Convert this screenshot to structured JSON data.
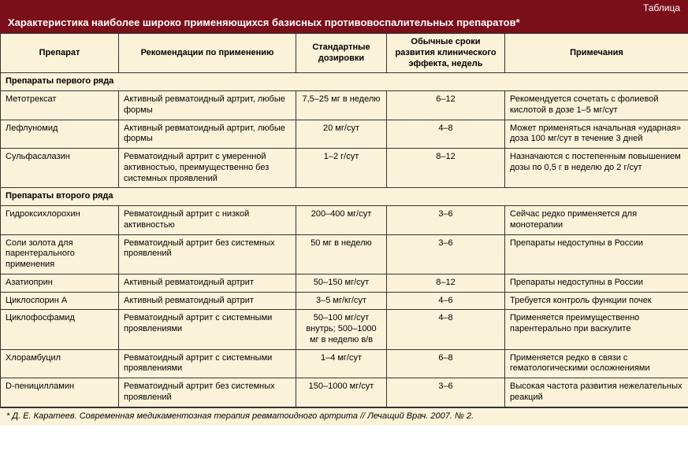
{
  "label": "Таблица",
  "title": "Характеристика наиболее широко применяющихся базисных противовоспалительных препаратов*",
  "columns": [
    "Препарат",
    "Рекомендации по применению",
    "Стандартные дозировки",
    "Обычные сроки развития клинического эффекта, недель",
    "Примечания"
  ],
  "colors": {
    "header_bg": "#7a0f1a",
    "header_text": "#ffffff",
    "body_bg": "#fbf3d9",
    "border": "#333333"
  },
  "sections": [
    {
      "heading": "Препараты первого ряда",
      "rows": [
        {
          "drug": "Метотрексат",
          "rec": "Активный ревматоидный артрит, любые формы",
          "dose": "7,5–25 мг в неделю",
          "weeks": "6–12",
          "note": "Рекомендуется сочетать с фолиевой кислотой в дозе 1–5 мг/сут"
        },
        {
          "drug": "Лефлуномид",
          "rec": "Активный ревматоидный артрит, любые формы",
          "dose": "20 мг/сут",
          "weeks": "4–8",
          "note": "Может применяться начальная «ударная» доза 100 мг/сут в течение 3 дней"
        },
        {
          "drug": "Сульфасалазин",
          "rec": "Ревматоидный артрит с умеренной активностью, преимущественно без системных проявлений",
          "dose": "1–2 г/сут",
          "weeks": "8–12",
          "note": "Назначаются с постепенным повышением дозы по 0,5 г в неделю до 2 г/сут"
        }
      ]
    },
    {
      "heading": "Препараты второго ряда",
      "rows": [
        {
          "drug": "Гидроксихлорохин",
          "rec": "Ревматоидный артрит с низкой активностью",
          "dose": "200–400 мг/сут",
          "weeks": "3–6",
          "note": "Сейчас редко применяется для монотерапии"
        },
        {
          "drug": "Соли золота для парентерального применения",
          "rec": "Ревматоидный артрит без системных проявлений",
          "dose": "50 мг в неделю",
          "weeks": "3–6",
          "note": "Препараты недоступны в России"
        },
        {
          "drug": "Азатиоприн",
          "rec": "Активный ревматоидный артрит",
          "dose": "50–150 мг/сут",
          "weeks": "8–12",
          "note": "Препараты недоступны в России"
        },
        {
          "drug": "Циклоспорин А",
          "rec": "Активный ревматоидный артрит",
          "dose": "3–5 мг/кг/сут",
          "weeks": "4–6",
          "note": "Требуется контроль функции почек"
        },
        {
          "drug": "Циклофосфамид",
          "rec": "Ревматоидный артрит с системными проявлениями",
          "dose": "50–100 мг/сут внутрь; 500–1000 мг в неделю в/в",
          "weeks": "4–8",
          "note": "Применяется преимущественно парентерально при васкулите"
        },
        {
          "drug": "Хлорамбуцил",
          "rec": "Ревматоидный артрит с системными проявлениями",
          "dose": "1–4 мг/сут",
          "weeks": "6–8",
          "note": "Применяется редко в связи с гематологическими осложнениями"
        },
        {
          "drug": "D-пеницилламин",
          "rec": "Ревматоидный артрит без системных проявлений",
          "dose": "150–1000 мг/сут",
          "weeks": "3–6",
          "note": "Высокая частота развития нежелательных реакций"
        }
      ]
    }
  ],
  "footnote": "* Д. Е. Каратеев. Современная медикаментозная терапия ревматоидного артрита // Лечащий Врач. 2007. № 2."
}
